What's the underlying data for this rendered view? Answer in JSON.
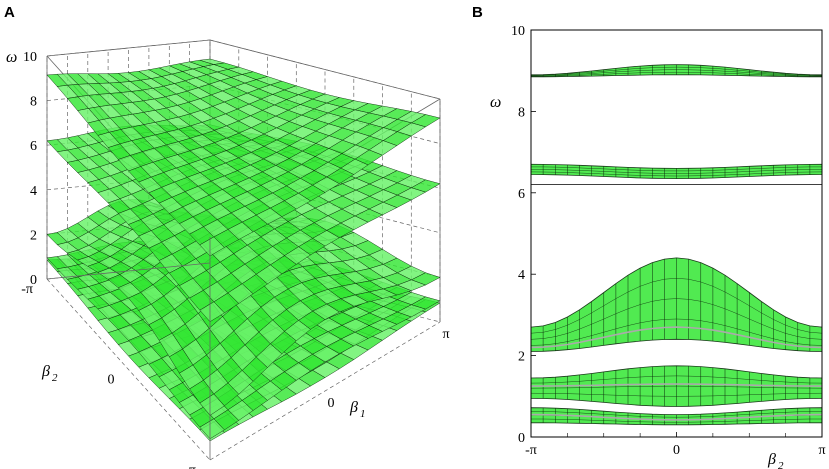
{
  "figure": {
    "panel_a_label": "A",
    "panel_b_label": "B"
  },
  "colors": {
    "surface": "#33e633",
    "surface_light": "#66f266",
    "mesh": "#0a2a0a",
    "box": "#666666"
  },
  "chart_data": [
    {
      "type": "surface",
      "panel": "A",
      "title": "",
      "zlabel": "ω",
      "xlabel_base": "β",
      "xlabel_sub": "1",
      "ylabel_base": "β",
      "ylabel_sub": "2",
      "zlim": [
        0,
        10
      ],
      "z_ticks": [
        "0",
        "2",
        "4",
        "6",
        "8",
        "10"
      ],
      "x_ticks": [
        "π",
        "0",
        "-π"
      ],
      "y_ticks": [
        "-π",
        "0",
        "π"
      ],
      "grid": true,
      "bands": [
        {
          "mean": 0.6,
          "amp": 0.25
        },
        {
          "mean": 1.3,
          "amp": 0.35
        },
        {
          "mean": 3.2,
          "amp": 1.2
        },
        {
          "mean": 6.5,
          "amp": 0.3
        },
        {
          "mean": 8.9,
          "amp": 0.25
        }
      ]
    },
    {
      "type": "band-projection",
      "panel": "B",
      "title": "",
      "ylabel": "ω",
      "xlabel_base": "β",
      "xlabel_sub": "2",
      "xlim": [
        -3.1416,
        3.1416
      ],
      "ylim": [
        0,
        10
      ],
      "y_ticks": [
        "0",
        "2",
        "4",
        "6",
        "8",
        "10"
      ],
      "x_ticks": [
        "-π",
        "0",
        "π"
      ],
      "break_at": 6.2,
      "bands": [
        {
          "lower": [
            0.35,
            0.3,
            0.35
          ],
          "upper": [
            0.72,
            0.55,
            0.72
          ],
          "curve": [
            0.55,
            0.42,
            0.55
          ]
        },
        {
          "lower": [
            0.95,
            0.75,
            0.95
          ],
          "upper": [
            1.45,
            1.75,
            1.45
          ],
          "curve": [
            1.25,
            1.3,
            1.25
          ]
        },
        {
          "lower": [
            2.1,
            2.4,
            2.1
          ],
          "upper": [
            2.7,
            4.4,
            2.7
          ],
          "curve": [
            2.2,
            2.7,
            2.2
          ]
        },
        {
          "lower": [
            6.45,
            6.35,
            6.45
          ],
          "upper": [
            6.7,
            6.6,
            6.7
          ],
          "curve": null
        },
        {
          "lower": [
            8.85,
            8.9,
            8.85
          ],
          "upper": [
            8.9,
            9.15,
            8.9
          ],
          "curve": null
        }
      ]
    }
  ]
}
